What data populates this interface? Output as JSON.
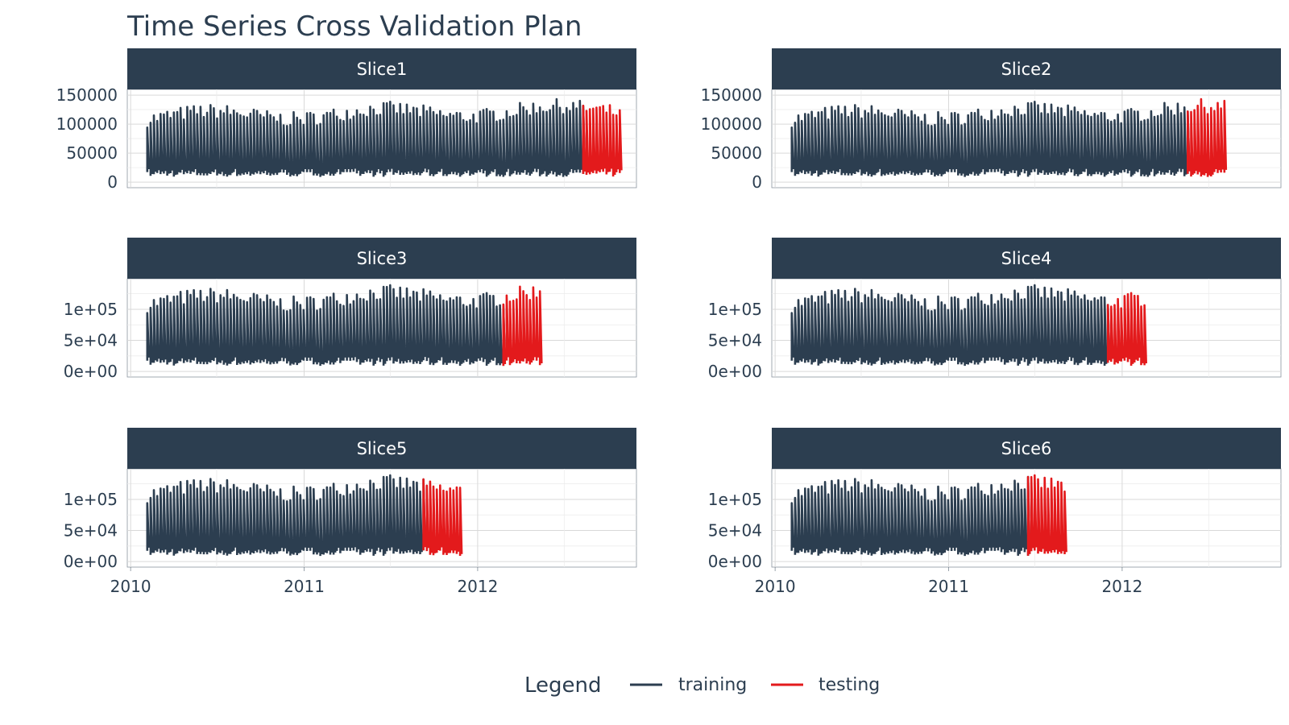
{
  "chart_data": {
    "type": "line",
    "title": "Time Series Cross Validation Plan",
    "xlabel": "",
    "ylabel": "",
    "x_ticks": [
      "2010",
      "2011",
      "2012"
    ],
    "legend": {
      "title": "Legend",
      "position": "bottom",
      "entries": [
        {
          "name": "training",
          "color": "#2c3e50"
        },
        {
          "name": "testing",
          "color": "#e31a1c"
        }
      ]
    },
    "grid": true,
    "data_start": "2010-02-05",
    "panels": [
      {
        "name": "Slice1",
        "y_ticks": [
          "0",
          "50000",
          "100000",
          "150000"
        ],
        "y_tick_values": [
          0,
          50000,
          100000,
          150000
        ],
        "ylim": [
          0,
          150000
        ],
        "training": {
          "start": "2010-02-05",
          "end": "2012-08-10"
        },
        "testing": {
          "start": "2012-08-10",
          "end": "2012-10-26"
        }
      },
      {
        "name": "Slice2",
        "y_ticks": [
          "0",
          "50000",
          "100000",
          "150000"
        ],
        "y_tick_values": [
          0,
          50000,
          100000,
          150000
        ],
        "ylim": [
          0,
          150000
        ],
        "training": {
          "start": "2010-02-05",
          "end": "2012-05-18"
        },
        "testing": {
          "start": "2012-05-18",
          "end": "2012-08-03"
        }
      },
      {
        "name": "Slice3",
        "y_ticks": [
          "0e+00",
          "5e+04",
          "1e+05"
        ],
        "y_tick_values": [
          0,
          50000,
          100000
        ],
        "ylim": [
          0,
          140000
        ],
        "training": {
          "start": "2010-02-05",
          "end": "2012-02-24"
        },
        "testing": {
          "start": "2012-02-24",
          "end": "2012-05-11"
        }
      },
      {
        "name": "Slice4",
        "y_ticks": [
          "0e+00",
          "5e+04",
          "1e+05"
        ],
        "y_tick_values": [
          0,
          50000,
          100000
        ],
        "ylim": [
          0,
          140000
        ],
        "training": {
          "start": "2010-02-05",
          "end": "2011-12-02"
        },
        "testing": {
          "start": "2011-12-02",
          "end": "2012-02-17"
        }
      },
      {
        "name": "Slice5",
        "y_ticks": [
          "0e+00",
          "5e+04",
          "1e+05"
        ],
        "y_tick_values": [
          0,
          50000,
          100000
        ],
        "ylim": [
          0,
          140000
        ],
        "training": {
          "start": "2010-02-05",
          "end": "2011-09-09"
        },
        "testing": {
          "start": "2011-09-09",
          "end": "2011-11-25"
        }
      },
      {
        "name": "Slice6",
        "y_ticks": [
          "0e+00",
          "5e+04",
          "1e+05"
        ],
        "y_tick_values": [
          0,
          50000,
          100000
        ],
        "ylim": [
          0,
          140000
        ],
        "training": {
          "start": "2010-02-05",
          "end": "2011-06-17"
        },
        "testing": {
          "start": "2011-06-17",
          "end": "2011-09-02"
        }
      }
    ]
  }
}
